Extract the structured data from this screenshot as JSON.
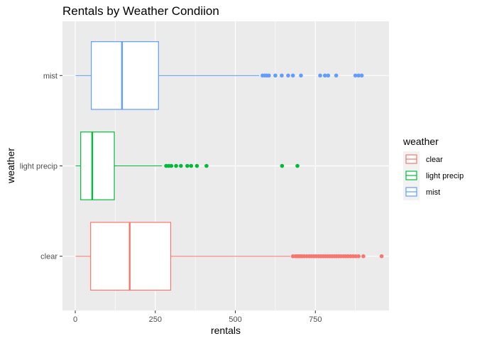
{
  "chart_data": {
    "type": "boxplot",
    "orientation": "horizontal",
    "title": "Rentals by Weather Condiion",
    "xlabel": "rentals",
    "ylabel": "weather",
    "xlim": [
      -40,
      980
    ],
    "x_ticks": [
      0,
      250,
      500,
      750
    ],
    "x_tick_labels": [
      "0",
      "250",
      "500",
      "750"
    ],
    "x_minor_ticks": [
      125,
      375,
      625,
      875
    ],
    "grid": true,
    "legend": {
      "title": "weather",
      "position": "right",
      "entries": [
        "clear",
        "light precip",
        "mist"
      ]
    },
    "categories": [
      "clear",
      "light precip",
      "mist"
    ],
    "series": [
      {
        "name": "clear",
        "color": "#F8766D",
        "whisker_low": 1,
        "q1": 48,
        "median": 170,
        "q3": 298,
        "whisker_high": 672,
        "outliers": [
          680,
          688,
          693,
          698,
          703,
          708,
          715,
          723,
          731,
          738,
          745,
          752,
          760,
          767,
          774,
          781,
          788,
          795,
          802,
          809,
          816,
          823,
          830,
          838,
          845,
          852,
          860,
          868,
          876,
          885,
          900,
          957
        ]
      },
      {
        "name": "light precip",
        "color": "#00BA38",
        "whisker_low": 1,
        "q1": 17,
        "median": 53,
        "q3": 122,
        "whisker_high": 271,
        "outliers": [
          284,
          292,
          300,
          315,
          330,
          350,
          362,
          380,
          410,
          646,
          694
        ]
      },
      {
        "name": "mist",
        "color": "#619CFF",
        "whisker_low": 1,
        "q1": 50,
        "median": 146,
        "q3": 260,
        "whisker_high": 575,
        "outliers": [
          585,
          592,
          598,
          605,
          625,
          645,
          665,
          680,
          705,
          765,
          780,
          790,
          815,
          875,
          885,
          895
        ]
      }
    ]
  }
}
